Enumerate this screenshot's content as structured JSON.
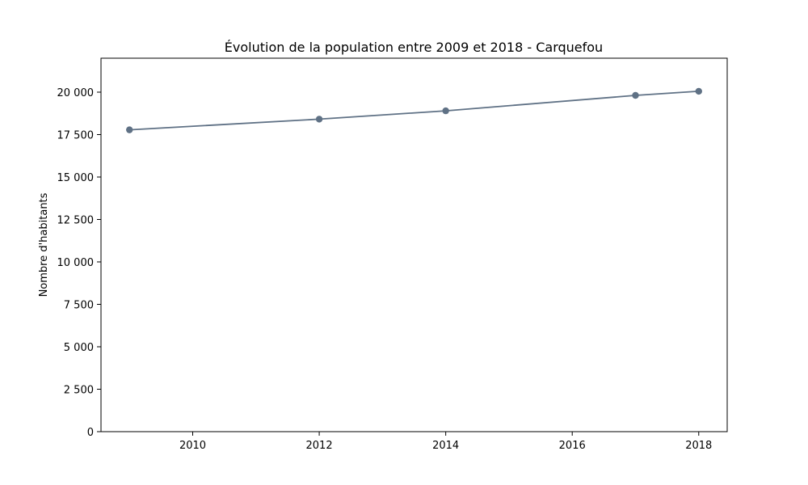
{
  "chart_data": {
    "type": "line",
    "title": "Évolution de la population entre 2009 et 2018 - Carquefou",
    "xlabel": "",
    "ylabel": "Nombre d'habitants",
    "x": [
      2009,
      2012,
      2014,
      2017,
      2018
    ],
    "series": [
      {
        "values": [
          17780,
          18410,
          18900,
          19810,
          20050
        ],
        "color": "#5f7185"
      }
    ],
    "xlim": [
      2008.55,
      2018.45
    ],
    "ylim": [
      0,
      22000
    ],
    "xticks": [
      2010,
      2012,
      2014,
      2016,
      2018
    ],
    "xtick_labels": [
      "2010",
      "2012",
      "2014",
      "2016",
      "2018"
    ],
    "yticks": [
      0,
      2500,
      5000,
      7500,
      10000,
      12500,
      15000,
      17500,
      20000
    ],
    "ytick_labels": [
      "0",
      "2 500",
      "5 000",
      "7 500",
      "10 000",
      "12 500",
      "15 000",
      "17 500",
      "20 000"
    ],
    "grid": false,
    "markers": true
  }
}
